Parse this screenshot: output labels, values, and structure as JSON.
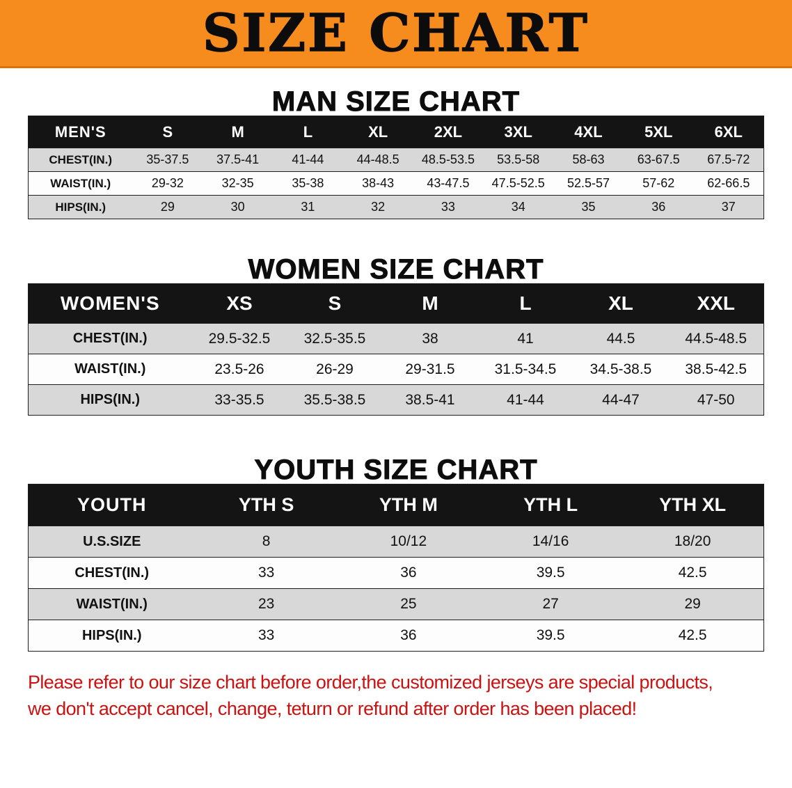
{
  "banner": {
    "title": "SIZE CHART"
  },
  "footer": {
    "line1": "Please refer to our size chart before order,the customized jerseys are special products,",
    "line2": "we don't accept cancel, change, teturn or refund after order has been placed!"
  },
  "colors": {
    "banner_orange": "#f68b1e",
    "table_header_black": "#141414",
    "row_gray": "#d8d8d8",
    "footer_red": "#cc1111",
    "text_black": "#111111"
  },
  "chart_data": [
    {
      "type": "table",
      "title": "MAN SIZE CHART",
      "corner_label": "MEN'S",
      "columns": [
        "S",
        "M",
        "L",
        "XL",
        "2XL",
        "3XL",
        "4XL",
        "5XL",
        "6XL"
      ],
      "row_labels": [
        "CHEST(IN.)",
        "WAIST(IN.)",
        "HIPS(IN.)"
      ],
      "rows": [
        [
          "35-37.5",
          "37.5-41",
          "41-44",
          "44-48.5",
          "48.5-53.5",
          "53.5-58",
          "58-63",
          "63-67.5",
          "67.5-72"
        ],
        [
          "29-32",
          "32-35",
          "35-38",
          "38-43",
          "43-47.5",
          "47.5-52.5",
          "52.5-57",
          "57-62",
          "62-66.5"
        ],
        [
          "29",
          "30",
          "31",
          "32",
          "33",
          "34",
          "35",
          "36",
          "37"
        ]
      ]
    },
    {
      "type": "table",
      "title": "WOMEN SIZE CHART",
      "corner_label": "WOMEN'S",
      "columns": [
        "XS",
        "S",
        "M",
        "L",
        "XL",
        "XXL"
      ],
      "row_labels": [
        "CHEST(IN.)",
        "WAIST(IN.)",
        "HIPS(IN.)"
      ],
      "rows": [
        [
          "29.5-32.5",
          "32.5-35.5",
          "38",
          "41",
          "44.5",
          "44.5-48.5"
        ],
        [
          "23.5-26",
          "26-29",
          "29-31.5",
          "31.5-34.5",
          "34.5-38.5",
          "38.5-42.5"
        ],
        [
          "33-35.5",
          "35.5-38.5",
          "38.5-41",
          "41-44",
          "44-47",
          "47-50"
        ]
      ]
    },
    {
      "type": "table",
      "title": "YOUTH SIZE CHART",
      "corner_label": "YOUTH",
      "columns": [
        "YTH S",
        "YTH M",
        "YTH L",
        "YTH XL"
      ],
      "row_labels": [
        "U.S.SIZE",
        "CHEST(IN.)",
        "WAIST(IN.)",
        "HIPS(IN.)"
      ],
      "rows": [
        [
          "8",
          "10/12",
          "14/16",
          "18/20"
        ],
        [
          "33",
          "36",
          "39.5",
          "42.5"
        ],
        [
          "23",
          "25",
          "27",
          "29"
        ],
        [
          "33",
          "36",
          "39.5",
          "42.5"
        ]
      ]
    }
  ]
}
